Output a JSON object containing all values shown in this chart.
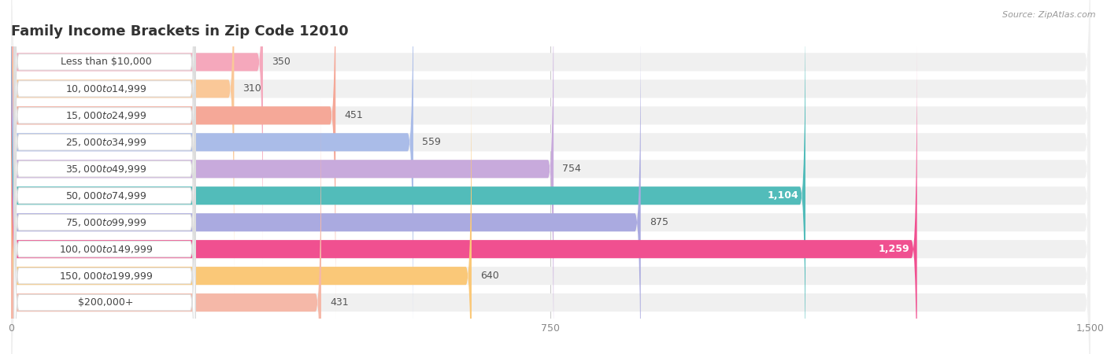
{
  "title": "Family Income Brackets in Zip Code 12010",
  "source": "Source: ZipAtlas.com",
  "categories": [
    "Less than $10,000",
    "$10,000 to $14,999",
    "$15,000 to $24,999",
    "$25,000 to $34,999",
    "$35,000 to $49,999",
    "$50,000 to $74,999",
    "$75,000 to $99,999",
    "$100,000 to $149,999",
    "$150,000 to $199,999",
    "$200,000+"
  ],
  "values": [
    350,
    310,
    451,
    559,
    754,
    1104,
    875,
    1259,
    640,
    431
  ],
  "bar_colors": [
    "#F5A8BC",
    "#FAC898",
    "#F5A898",
    "#AABCE8",
    "#C8AADC",
    "#52BCBA",
    "#AAAAE0",
    "#F05090",
    "#FAC878",
    "#F5B8A8"
  ],
  "label_colors": [
    "#555555",
    "#555555",
    "#555555",
    "#555555",
    "#555555",
    "#ffffff",
    "#555555",
    "#ffffff",
    "#555555",
    "#555555"
  ],
  "value_inside_threshold": 900,
  "xlim": [
    0,
    1500
  ],
  "xticks": [
    0,
    750,
    1500
  ],
  "background_color": "#ffffff",
  "bar_bg_color": "#f0f0f0",
  "label_bg_color": "#ffffff",
  "title_fontsize": 13,
  "label_fontsize": 9,
  "value_fontsize": 9
}
